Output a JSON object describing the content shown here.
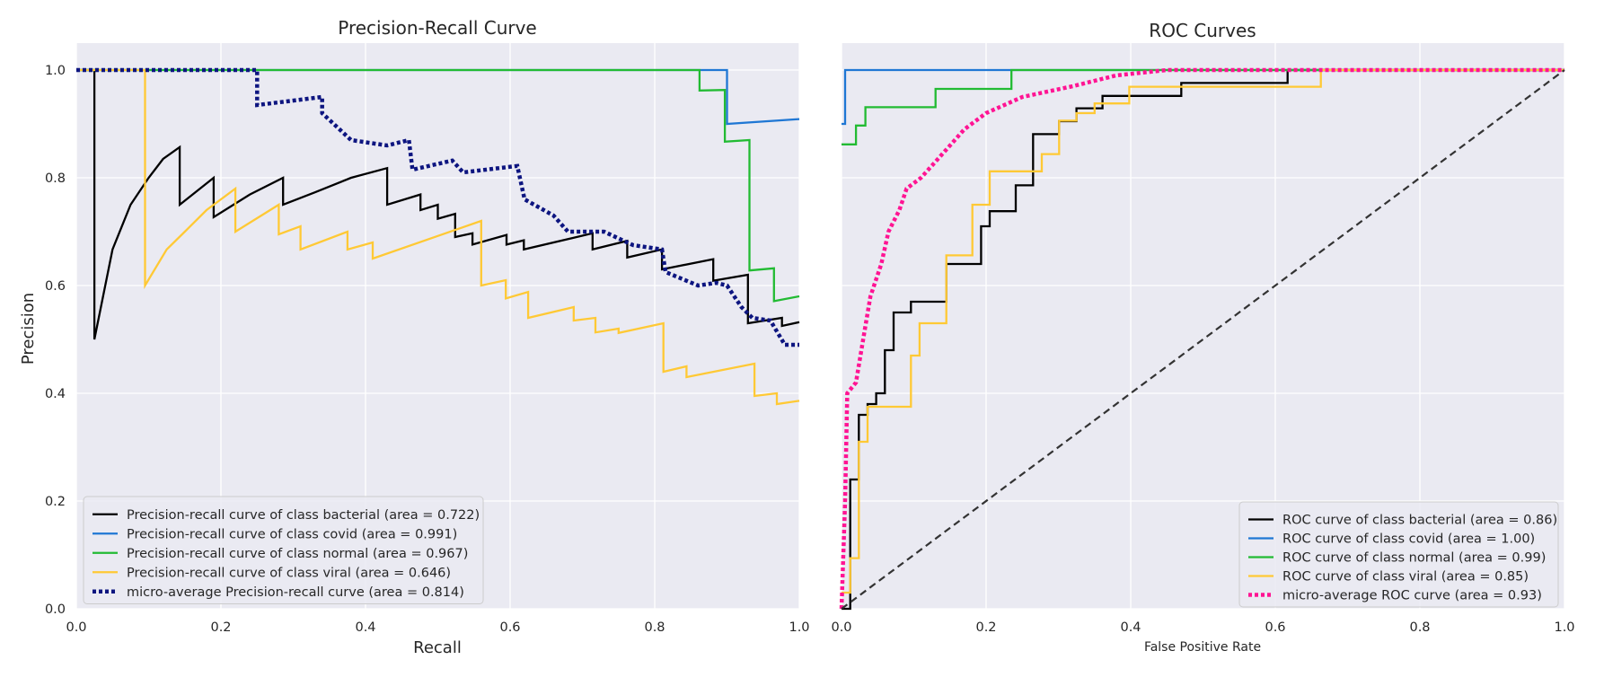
{
  "chart_data": [
    {
      "type": "line",
      "title": "Precision-Recall Curve",
      "xlabel": "Recall",
      "ylabel": "Precision",
      "xlim": [
        0.0,
        1.0
      ],
      "ylim": [
        0.0,
        1.05
      ],
      "xticks": [
        "0.0",
        "0.2",
        "0.4",
        "0.6",
        "0.8",
        "1.0"
      ],
      "yticks": [
        "0.0",
        "0.2",
        "0.4",
        "0.6",
        "0.8",
        "1.0"
      ],
      "grid": true,
      "legend_position": "lower-left",
      "series": [
        {
          "name": "Precision-recall curve of class bacterial (area = 0.722)",
          "color": "#000000",
          "style": "solid",
          "points": [
            [
              0,
              1.0
            ],
            [
              0.025,
              1.0
            ],
            [
              0.025,
              0.5
            ],
            [
              0.05,
              0.667
            ],
            [
              0.075,
              0.75
            ],
            [
              0.1,
              0.8
            ],
            [
              0.12,
              0.835
            ],
            [
              0.143,
              0.857
            ],
            [
              0.143,
              0.75
            ],
            [
              0.19,
              0.8
            ],
            [
              0.19,
              0.727
            ],
            [
              0.24,
              0.769
            ],
            [
              0.286,
              0.8
            ],
            [
              0.286,
              0.75
            ],
            [
              0.33,
              0.773
            ],
            [
              0.38,
              0.8
            ],
            [
              0.43,
              0.818
            ],
            [
              0.43,
              0.75
            ],
            [
              0.476,
              0.769
            ],
            [
              0.476,
              0.74
            ],
            [
              0.5,
              0.75
            ],
            [
              0.5,
              0.724
            ],
            [
              0.524,
              0.733
            ],
            [
              0.524,
              0.69
            ],
            [
              0.548,
              0.697
            ],
            [
              0.548,
              0.676
            ],
            [
              0.595,
              0.694
            ],
            [
              0.595,
              0.676
            ],
            [
              0.619,
              0.684
            ],
            [
              0.619,
              0.667
            ],
            [
              0.714,
              0.697
            ],
            [
              0.714,
              0.667
            ],
            [
              0.762,
              0.683
            ],
            [
              0.762,
              0.652
            ],
            [
              0.81,
              0.667
            ],
            [
              0.81,
              0.63
            ],
            [
              0.881,
              0.649
            ],
            [
              0.881,
              0.609
            ],
            [
              0.929,
              0.62
            ],
            [
              0.929,
              0.53
            ],
            [
              0.976,
              0.54
            ],
            [
              0.976,
              0.525
            ],
            [
              1.0,
              0.532
            ]
          ]
        },
        {
          "name": "Precision-recall curve of class covid (area = 0.991)",
          "color": "#1f77d4",
          "style": "solid",
          "points": [
            [
              0,
              1.0
            ],
            [
              0.9,
              1.0
            ],
            [
              0.9,
              0.9
            ],
            [
              1.0,
              0.909
            ]
          ]
        },
        {
          "name": "Precision-recall curve of class normal (area = 0.967)",
          "color": "#22bb33",
          "style": "solid",
          "points": [
            [
              0,
              1.0
            ],
            [
              0.862,
              1.0
            ],
            [
              0.862,
              0.962
            ],
            [
              0.897,
              0.963
            ],
            [
              0.897,
              0.867
            ],
            [
              0.931,
              0.87
            ],
            [
              0.931,
              0.628
            ],
            [
              0.965,
              0.632
            ],
            [
              0.965,
              0.571
            ],
            [
              1.0,
              0.58
            ]
          ]
        },
        {
          "name": "Precision-recall curve of class viral (area = 0.646)",
          "color": "#ffc935",
          "style": "solid",
          "points": [
            [
              0,
              1.0
            ],
            [
              0.095,
              1.0
            ],
            [
              0.095,
              0.6
            ],
            [
              0.125,
              0.667
            ],
            [
              0.15,
              0.7
            ],
            [
              0.18,
              0.74
            ],
            [
              0.22,
              0.78
            ],
            [
              0.22,
              0.7
            ],
            [
              0.28,
              0.75
            ],
            [
              0.28,
              0.695
            ],
            [
              0.31,
              0.71
            ],
            [
              0.31,
              0.667
            ],
            [
              0.375,
              0.7
            ],
            [
              0.375,
              0.667
            ],
            [
              0.41,
              0.68
            ],
            [
              0.41,
              0.65
            ],
            [
              0.56,
              0.72
            ],
            [
              0.56,
              0.6
            ],
            [
              0.594,
              0.61
            ],
            [
              0.594,
              0.576
            ],
            [
              0.625,
              0.588
            ],
            [
              0.625,
              0.54
            ],
            [
              0.688,
              0.56
            ],
            [
              0.688,
              0.535
            ],
            [
              0.718,
              0.54
            ],
            [
              0.718,
              0.513
            ],
            [
              0.75,
              0.52
            ],
            [
              0.75,
              0.512
            ],
            [
              0.812,
              0.53
            ],
            [
              0.812,
              0.44
            ],
            [
              0.844,
              0.45
            ],
            [
              0.844,
              0.43
            ],
            [
              0.938,
              0.455
            ],
            [
              0.938,
              0.395
            ],
            [
              0.969,
              0.4
            ],
            [
              0.969,
              0.38
            ],
            [
              1.0,
              0.386
            ]
          ]
        },
        {
          "name": "micro-average Precision-recall curve (area = 0.814)",
          "color": "#0d1580",
          "style": "dotted",
          "points": [
            [
              0,
              1.0
            ],
            [
              0.25,
              1.0
            ],
            [
              0.25,
              0.935
            ],
            [
              0.34,
              0.95
            ],
            [
              0.34,
              0.92
            ],
            [
              0.38,
              0.87
            ],
            [
              0.43,
              0.86
            ],
            [
              0.46,
              0.87
            ],
            [
              0.465,
              0.815
            ],
            [
              0.52,
              0.832
            ],
            [
              0.535,
              0.81
            ],
            [
              0.61,
              0.822
            ],
            [
              0.62,
              0.76
            ],
            [
              0.66,
              0.73
            ],
            [
              0.68,
              0.7
            ],
            [
              0.73,
              0.7
            ],
            [
              0.77,
              0.675
            ],
            [
              0.81,
              0.667
            ],
            [
              0.815,
              0.625
            ],
            [
              0.86,
              0.6
            ],
            [
              0.885,
              0.605
            ],
            [
              0.9,
              0.6
            ],
            [
              0.92,
              0.56
            ],
            [
              0.935,
              0.54
            ],
            [
              0.96,
              0.535
            ],
            [
              0.98,
              0.49
            ],
            [
              1.0,
              0.49
            ]
          ]
        }
      ]
    },
    {
      "type": "line",
      "title": "ROC Curves",
      "xlabel": "False Positive Rate",
      "ylabel": "",
      "xlim": [
        0.0,
        1.0
      ],
      "ylim": [
        0.0,
        1.05
      ],
      "xticks": [
        "0.0",
        "0.2",
        "0.4",
        "0.6",
        "0.8",
        "1.0"
      ],
      "yticks": [],
      "grid": true,
      "legend_position": "lower-right",
      "series": [
        {
          "name": "ROC curve of class bacterial (area = 0.86)",
          "color": "#000000",
          "style": "solid",
          "points": [
            [
              0,
              0.0
            ],
            [
              0.012,
              0.0
            ],
            [
              0.012,
              0.24
            ],
            [
              0.024,
              0.24
            ],
            [
              0.024,
              0.36
            ],
            [
              0.036,
              0.36
            ],
            [
              0.036,
              0.38
            ],
            [
              0.048,
              0.38
            ],
            [
              0.048,
              0.4
            ],
            [
              0.06,
              0.4
            ],
            [
              0.06,
              0.48
            ],
            [
              0.072,
              0.48
            ],
            [
              0.072,
              0.55
            ],
            [
              0.096,
              0.55
            ],
            [
              0.096,
              0.57
            ],
            [
              0.12,
              0.57
            ],
            [
              0.12,
              0.57
            ],
            [
              0.145,
              0.57
            ],
            [
              0.145,
              0.64
            ],
            [
              0.193,
              0.64
            ],
            [
              0.193,
              0.71
            ],
            [
              0.205,
              0.71
            ],
            [
              0.205,
              0.738
            ],
            [
              0.241,
              0.738
            ],
            [
              0.241,
              0.786
            ],
            [
              0.265,
              0.786
            ],
            [
              0.265,
              0.881
            ],
            [
              0.301,
              0.881
            ],
            [
              0.301,
              0.905
            ],
            [
              0.325,
              0.905
            ],
            [
              0.325,
              0.929
            ],
            [
              0.361,
              0.929
            ],
            [
              0.361,
              0.952
            ],
            [
              0.47,
              0.952
            ],
            [
              0.47,
              0.976
            ],
            [
              0.617,
              0.976
            ],
            [
              0.617,
              1.0
            ],
            [
              1.0,
              1.0
            ]
          ]
        },
        {
          "name": "ROC curve of class covid (area = 1.00)",
          "color": "#1f77d4",
          "style": "solid",
          "points": [
            [
              0,
              0.9
            ],
            [
              0.005,
              0.9
            ],
            [
              0.005,
              1.0
            ],
            [
              1.0,
              1.0
            ]
          ]
        },
        {
          "name": "ROC curve of class normal (area = 0.99)",
          "color": "#22bb33",
          "style": "solid",
          "points": [
            [
              0,
              0.862
            ],
            [
              0.02,
              0.862
            ],
            [
              0.02,
              0.897
            ],
            [
              0.033,
              0.897
            ],
            [
              0.033,
              0.931
            ],
            [
              0.13,
              0.931
            ],
            [
              0.13,
              0.965
            ],
            [
              0.235,
              0.965
            ],
            [
              0.235,
              1.0
            ],
            [
              1.0,
              1.0
            ]
          ]
        },
        {
          "name": "ROC curve of class viral (area = 0.85)",
          "color": "#ffc935",
          "style": "solid",
          "points": [
            [
              0,
              0.03
            ],
            [
              0.012,
              0.03
            ],
            [
              0.012,
              0.094
            ],
            [
              0.024,
              0.094
            ],
            [
              0.024,
              0.31
            ],
            [
              0.036,
              0.31
            ],
            [
              0.036,
              0.375
            ],
            [
              0.096,
              0.375
            ],
            [
              0.096,
              0.47
            ],
            [
              0.108,
              0.47
            ],
            [
              0.108,
              0.53
            ],
            [
              0.145,
              0.53
            ],
            [
              0.145,
              0.656
            ],
            [
              0.181,
              0.656
            ],
            [
              0.181,
              0.75
            ],
            [
              0.205,
              0.75
            ],
            [
              0.205,
              0.812
            ],
            [
              0.277,
              0.812
            ],
            [
              0.277,
              0.844
            ],
            [
              0.301,
              0.844
            ],
            [
              0.301,
              0.906
            ],
            [
              0.325,
              0.906
            ],
            [
              0.325,
              0.92
            ],
            [
              0.35,
              0.92
            ],
            [
              0.35,
              0.938
            ],
            [
              0.398,
              0.938
            ],
            [
              0.398,
              0.969
            ],
            [
              0.506,
              0.969
            ],
            [
              0.506,
              0.969
            ],
            [
              0.663,
              0.969
            ],
            [
              0.663,
              1.0
            ],
            [
              1.0,
              1.0
            ]
          ]
        },
        {
          "name": "micro-average ROC curve (area = 0.93)",
          "color": "#ff1493",
          "style": "dotted",
          "points": [
            [
              0,
              0.0
            ],
            [
              0.005,
              0.2
            ],
            [
              0.008,
              0.4
            ],
            [
              0.02,
              0.42
            ],
            [
              0.03,
              0.5
            ],
            [
              0.04,
              0.58
            ],
            [
              0.055,
              0.64
            ],
            [
              0.065,
              0.7
            ],
            [
              0.08,
              0.74
            ],
            [
              0.09,
              0.78
            ],
            [
              0.11,
              0.8
            ],
            [
              0.13,
              0.83
            ],
            [
              0.15,
              0.86
            ],
            [
              0.17,
              0.89
            ],
            [
              0.2,
              0.92
            ],
            [
              0.25,
              0.95
            ],
            [
              0.32,
              0.97
            ],
            [
              0.38,
              0.99
            ],
            [
              0.45,
              1.0
            ],
            [
              1.0,
              1.0
            ]
          ]
        },
        {
          "name": "",
          "color": "#333333",
          "style": "dashed",
          "legend": false,
          "points": [
            [
              0,
              0
            ],
            [
              1,
              1
            ]
          ]
        }
      ]
    }
  ]
}
